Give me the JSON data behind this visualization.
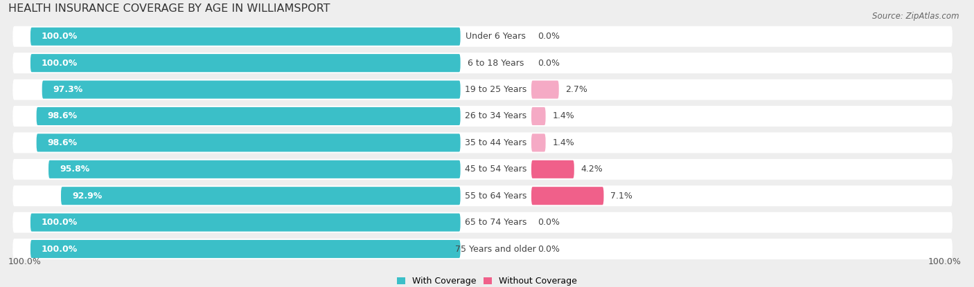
{
  "title": "HEALTH INSURANCE COVERAGE BY AGE IN WILLIAMSPORT",
  "source": "Source: ZipAtlas.com",
  "categories": [
    "Under 6 Years",
    "6 to 18 Years",
    "19 to 25 Years",
    "26 to 34 Years",
    "35 to 44 Years",
    "45 to 54 Years",
    "55 to 64 Years",
    "65 to 74 Years",
    "75 Years and older"
  ],
  "with_coverage": [
    100.0,
    100.0,
    97.3,
    98.6,
    98.6,
    95.8,
    92.9,
    100.0,
    100.0
  ],
  "without_coverage": [
    0.0,
    0.0,
    2.7,
    1.4,
    1.4,
    4.2,
    7.1,
    0.0,
    0.0
  ],
  "color_with": "#3bbfc8",
  "color_without_strong": "#f0608a",
  "color_without_light": "#f5aac5",
  "background_color": "#eeeeee",
  "title_fontsize": 11.5,
  "label_fontsize": 9,
  "tick_fontsize": 9,
  "source_fontsize": 8.5,
  "bar_height": 0.68
}
